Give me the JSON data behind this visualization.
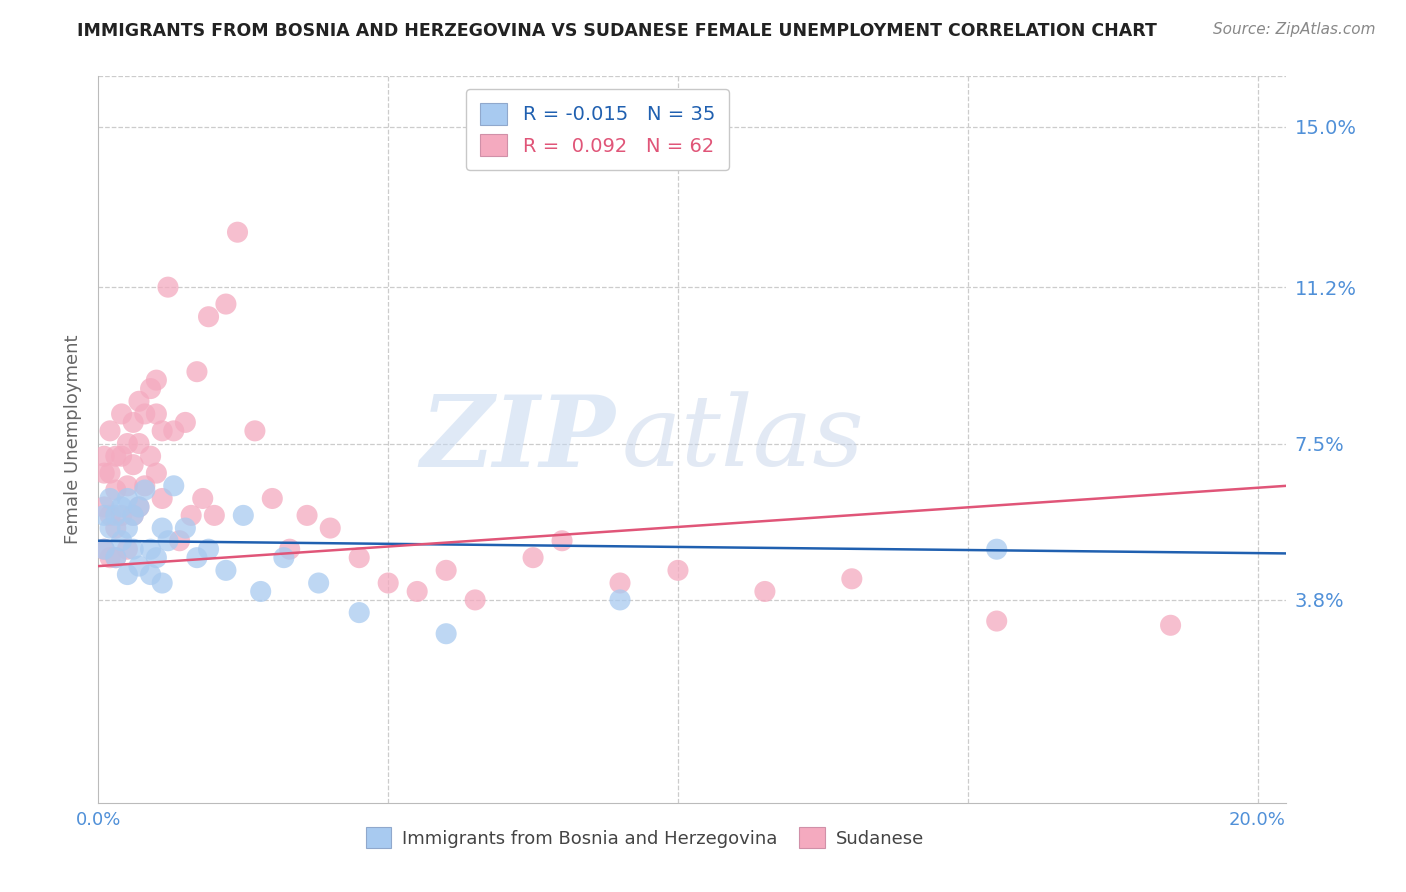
{
  "title": "IMMIGRANTS FROM BOSNIA AND HERZEGOVINA VS SUDANESE FEMALE UNEMPLOYMENT CORRELATION CHART",
  "source": "Source: ZipAtlas.com",
  "ylabel": "Female Unemployment",
  "xlim": [
    0.0,
    0.205
  ],
  "ylim": [
    -0.01,
    0.162
  ],
  "ytick_vals": [
    0.038,
    0.075,
    0.112,
    0.15
  ],
  "ytick_labels": [
    "3.8%",
    "7.5%",
    "11.2%",
    "15.0%"
  ],
  "xtick_vals": [
    0.0,
    0.05,
    0.1,
    0.15,
    0.2
  ],
  "watermark_zip": "ZIP",
  "watermark_atlas": "atlas",
  "legend_label1": "Immigrants from Bosnia and Herzegovina",
  "legend_label2": "Sudanese",
  "legend_r1": "R = -0.015",
  "legend_n1": "N = 35",
  "legend_r2": "R =  0.092",
  "legend_n2": "N = 62",
  "bosnia_color": "#A8CAF0",
  "sudanese_color": "#F4AABF",
  "bosnia_line_color": "#2060B0",
  "sudanese_line_color": "#E05578",
  "title_color": "#222222",
  "axis_label_color": "#666666",
  "tick_color": "#5090D8",
  "grid_color": "#CCCCCC",
  "background_color": "#FFFFFF",
  "bosnia_x": [
    0.001,
    0.001,
    0.002,
    0.002,
    0.003,
    0.003,
    0.004,
    0.004,
    0.005,
    0.005,
    0.005,
    0.006,
    0.006,
    0.007,
    0.007,
    0.008,
    0.009,
    0.009,
    0.01,
    0.011,
    0.011,
    0.012,
    0.013,
    0.015,
    0.017,
    0.019,
    0.022,
    0.025,
    0.028,
    0.032,
    0.038,
    0.045,
    0.06,
    0.09,
    0.155
  ],
  "bosnia_y": [
    0.05,
    0.058,
    0.055,
    0.062,
    0.058,
    0.048,
    0.06,
    0.052,
    0.062,
    0.055,
    0.044,
    0.058,
    0.05,
    0.06,
    0.046,
    0.064,
    0.044,
    0.05,
    0.048,
    0.042,
    0.055,
    0.052,
    0.065,
    0.055,
    0.048,
    0.05,
    0.045,
    0.058,
    0.04,
    0.048,
    0.042,
    0.035,
    0.03,
    0.038,
    0.05
  ],
  "sudanese_x": [
    0.001,
    0.001,
    0.001,
    0.001,
    0.002,
    0.002,
    0.002,
    0.002,
    0.003,
    0.003,
    0.003,
    0.003,
    0.004,
    0.004,
    0.004,
    0.005,
    0.005,
    0.005,
    0.006,
    0.006,
    0.006,
    0.007,
    0.007,
    0.007,
    0.008,
    0.008,
    0.009,
    0.009,
    0.01,
    0.01,
    0.01,
    0.011,
    0.011,
    0.012,
    0.013,
    0.014,
    0.015,
    0.016,
    0.017,
    0.018,
    0.019,
    0.02,
    0.022,
    0.024,
    0.027,
    0.03,
    0.033,
    0.036,
    0.04,
    0.045,
    0.05,
    0.055,
    0.06,
    0.065,
    0.075,
    0.08,
    0.09,
    0.1,
    0.115,
    0.13,
    0.155,
    0.185
  ],
  "sudanese_y": [
    0.072,
    0.068,
    0.06,
    0.05,
    0.078,
    0.068,
    0.058,
    0.048,
    0.072,
    0.064,
    0.055,
    0.048,
    0.082,
    0.072,
    0.058,
    0.075,
    0.065,
    0.05,
    0.08,
    0.07,
    0.058,
    0.085,
    0.075,
    0.06,
    0.082,
    0.065,
    0.088,
    0.072,
    0.09,
    0.082,
    0.068,
    0.078,
    0.062,
    0.112,
    0.078,
    0.052,
    0.08,
    0.058,
    0.092,
    0.062,
    0.105,
    0.058,
    0.108,
    0.125,
    0.078,
    0.062,
    0.05,
    0.058,
    0.055,
    0.048,
    0.042,
    0.04,
    0.045,
    0.038,
    0.048,
    0.052,
    0.042,
    0.045,
    0.04,
    0.043,
    0.033,
    0.032
  ]
}
